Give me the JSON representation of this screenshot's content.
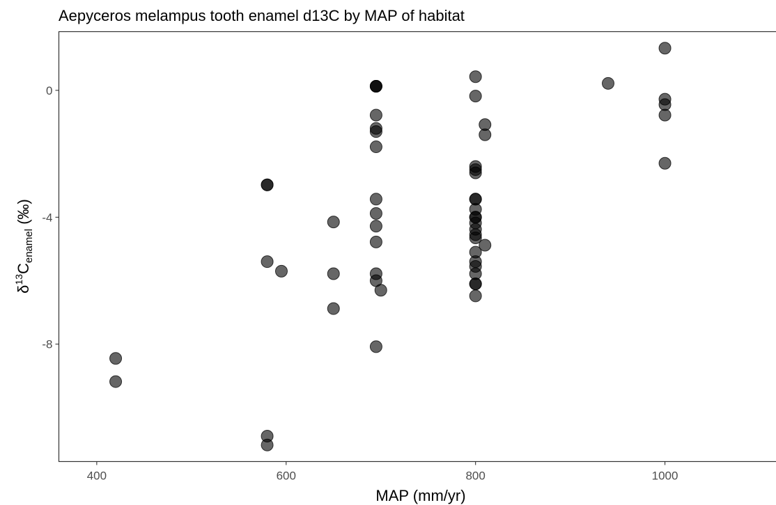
{
  "chart_data": {
    "type": "scatter",
    "title": "Aepyceros melampus tooth enamel d13C by MAP of habitat",
    "xlabel": "MAP (mm/yr)",
    "ylabel": {
      "prefix": "δ",
      "superscript": "13",
      "main": "C",
      "subscript": "enamel",
      "suffix": " (‰)"
    },
    "xlim": [
      360,
      1125
    ],
    "ylim": [
      -11.7,
      1.85
    ],
    "x_ticks": [
      400,
      600,
      800,
      1000
    ],
    "x_tick_labels": [
      "400",
      "600",
      "800",
      "1000"
    ],
    "y_ticks": [
      0,
      -4,
      -8
    ],
    "y_tick_labels": [
      "0",
      "-4",
      "-8"
    ],
    "grid": false,
    "legend": "none",
    "point_color": "#000000",
    "point_opacity": 0.6,
    "points": [
      {
        "x": 420,
        "y": -8.45
      },
      {
        "x": 420,
        "y": -9.18
      },
      {
        "x": 580,
        "y": -2.98
      },
      {
        "x": 580,
        "y": -2.98
      },
      {
        "x": 580,
        "y": -5.4
      },
      {
        "x": 580,
        "y": -10.9
      },
      {
        "x": 580,
        "y": -11.18
      },
      {
        "x": 595,
        "y": -5.7
      },
      {
        "x": 650,
        "y": -4.15
      },
      {
        "x": 650,
        "y": -5.78
      },
      {
        "x": 650,
        "y": -6.88
      },
      {
        "x": 695,
        "y": 0.13
      },
      {
        "x": 695,
        "y": 0.13
      },
      {
        "x": 695,
        "y": 0.13
      },
      {
        "x": 695,
        "y": -0.78
      },
      {
        "x": 695,
        "y": -1.2
      },
      {
        "x": 695,
        "y": -1.3
      },
      {
        "x": 695,
        "y": -1.78
      },
      {
        "x": 695,
        "y": -3.43
      },
      {
        "x": 695,
        "y": -3.88
      },
      {
        "x": 695,
        "y": -4.28
      },
      {
        "x": 695,
        "y": -4.78
      },
      {
        "x": 695,
        "y": -5.78
      },
      {
        "x": 695,
        "y": -6.0
      },
      {
        "x": 695,
        "y": -8.08
      },
      {
        "x": 700,
        "y": -6.3
      },
      {
        "x": 800,
        "y": 0.43
      },
      {
        "x": 800,
        "y": -0.18
      },
      {
        "x": 800,
        "y": -2.4
      },
      {
        "x": 800,
        "y": -2.5
      },
      {
        "x": 800,
        "y": -2.6
      },
      {
        "x": 800,
        "y": -3.43
      },
      {
        "x": 800,
        "y": -3.43
      },
      {
        "x": 800,
        "y": -3.75
      },
      {
        "x": 800,
        "y": -4.0
      },
      {
        "x": 800,
        "y": -4.0
      },
      {
        "x": 800,
        "y": -4.18
      },
      {
        "x": 800,
        "y": -4.38
      },
      {
        "x": 800,
        "y": -4.55
      },
      {
        "x": 800,
        "y": -4.65
      },
      {
        "x": 800,
        "y": -5.1
      },
      {
        "x": 800,
        "y": -5.4
      },
      {
        "x": 800,
        "y": -5.55
      },
      {
        "x": 800,
        "y": -5.78
      },
      {
        "x": 800,
        "y": -6.1
      },
      {
        "x": 800,
        "y": -6.1
      },
      {
        "x": 800,
        "y": -6.48
      },
      {
        "x": 810,
        "y": -1.08
      },
      {
        "x": 810,
        "y": -1.4
      },
      {
        "x": 810,
        "y": -4.88
      },
      {
        "x": 940,
        "y": 0.22
      },
      {
        "x": 1000,
        "y": 1.33
      },
      {
        "x": 1000,
        "y": -0.28
      },
      {
        "x": 1000,
        "y": -0.45
      },
      {
        "x": 1000,
        "y": -0.78
      },
      {
        "x": 1000,
        "y": -2.3
      }
    ]
  }
}
